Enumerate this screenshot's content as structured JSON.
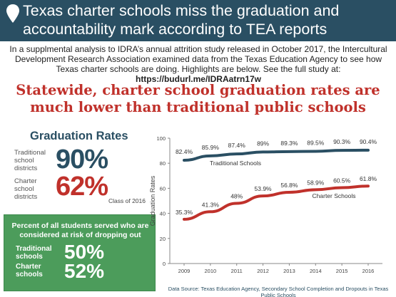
{
  "header": {
    "title": "Texas charter schools miss the graduation and accountability mark according to TEA reports",
    "icon": "location-pin-icon"
  },
  "intro": {
    "text": "In a supplmental analysis to IDRA’s annual attrition study released in October 2017, the Intercultural Development Research Association examined data from the Texas Education Agency to see how Texas charter schools are doing. Highlights are below. See the full study at: ",
    "url": "https://budurl.me/IDRAatrn17w"
  },
  "headline": "Statewide, charter school graduation rates are much lower than traditional public schools",
  "graduation_rates": {
    "title": "Graduation Rates",
    "traditional_label": "Traditional school districts",
    "traditional_value": "90%",
    "charter_label": "Charter school districts",
    "charter_value": "62%",
    "note": "Class of 2016"
  },
  "risk": {
    "heading": "Percent of all students served who are considered at risk of dropping out",
    "traditional_label": "Traditional schools",
    "traditional_value": "50%",
    "charter_label": "Charter schools",
    "charter_value": "52%"
  },
  "colors": {
    "header_bg": "#2a4f63",
    "traditional": "#2a4f63",
    "charter": "#c0312b",
    "risk_bg": "#4c9c5b"
  },
  "chart_data": {
    "type": "line",
    "x": [
      2009,
      2010,
      2011,
      2012,
      2013,
      2014,
      2015,
      2016
    ],
    "series": [
      {
        "name": "Traditional Schools",
        "values": [
          82.4,
          85.9,
          87.4,
          89,
          89.3,
          89.5,
          90.3,
          90.4
        ],
        "labels": [
          "82.4%",
          "85.9%",
          "87.4%",
          "89%",
          "89.3%",
          "89.5%",
          "90.3%",
          "90.4%"
        ],
        "color": "#2a4f63"
      },
      {
        "name": "Charter Schools",
        "values": [
          35.3,
          41.3,
          48,
          53.9,
          56.8,
          58.9,
          60.5,
          61.8
        ],
        "labels": [
          "35.3%",
          "41.3%",
          "48%",
          "53.9%",
          "56.8%",
          "58.9%",
          "60.5%",
          "61.8%"
        ],
        "color": "#c0312b"
      }
    ],
    "ylabel": "Graduation Rates",
    "ylim": [
      0,
      100
    ],
    "yticks": [
      0,
      20,
      40,
      60,
      80,
      100
    ],
    "xticks": [
      "2009",
      "2010",
      "2011",
      "2012",
      "2013",
      "2014",
      "2015",
      "2016"
    ],
    "grid": false
  },
  "source": "Data Source: Texas Education Agency, Secondary School Completion and Dropouts in Texas Public Schools"
}
